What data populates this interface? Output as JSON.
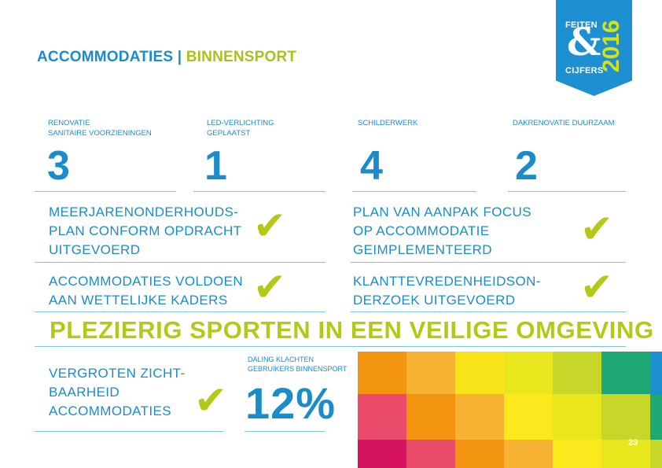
{
  "header": {
    "title_part1": "ACCOMMODATIES",
    "separator": "|",
    "title_part2": "BINNENSPORT"
  },
  "badge": {
    "top_word": "FEITEN",
    "ampersand": "&",
    "bottom_word": "CIJFERS",
    "year": "2016",
    "color": "#1e8fd0"
  },
  "stats": [
    {
      "label": "RENOVATIE\nSANITAIRE VOORZIENINGEN",
      "value": "3"
    },
    {
      "label": "LED-VERLICHTING\nGEPLAATST",
      "value": "1"
    },
    {
      "label": "SCHILDERWERK",
      "value": "4"
    },
    {
      "label": "DAKRENOVATIE DUURZAAM",
      "value": "2"
    }
  ],
  "achievements": [
    {
      "text": "MEERJARENONDERHOUDS-\nPLAN CONFORM OPDRACHT\nUITGEVOERD",
      "check": "✔"
    },
    {
      "text": "PLAN VAN AANPAK FOCUS\nOP ACCOMMODATIE\nGEIMPLEMENTEERD",
      "check": "✔"
    },
    {
      "text": "ACCOMMODATIES VOLDOEN\nAAN WETTELIJKE KADERS",
      "check": "✔"
    },
    {
      "text": "KLANTTEVREDENHEIDSON-\nDERZOEK UITGEVOERD",
      "check": "✔"
    }
  ],
  "slogan": "PLEZIERIG SPORTEN IN EEN VEILIGE OMGEVING",
  "bottom": {
    "goal_text": "VERGROTEN ZICHT-\nBAARHEID\nACCOMMODATIES",
    "goal_check": "✔",
    "decline_label": "DALING KLACHTEN\nGEBRUIKERS BINNENSPORT",
    "decline_value": "12%"
  },
  "page_number": "23",
  "colors": {
    "blue": "#1a8ccb",
    "green": "#b5c817"
  }
}
